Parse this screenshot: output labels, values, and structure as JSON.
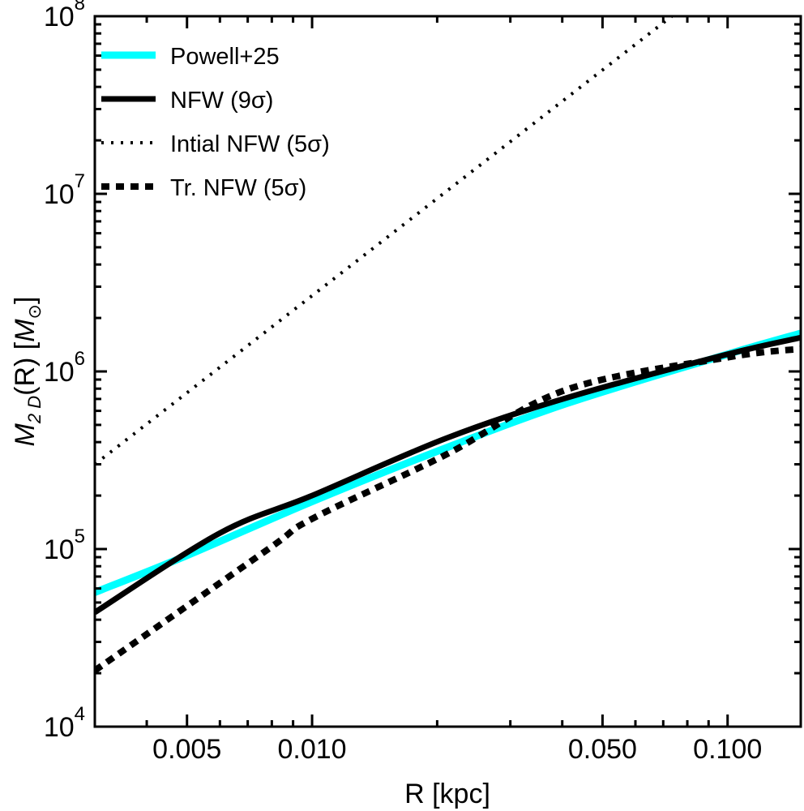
{
  "chart_data": {
    "type": "line",
    "xlabel": "R [kpc]",
    "ylabel": {
      "main": "M",
      "sub": "2 D",
      "mid": "(R) [",
      "unit": "M",
      "unit_sub": "⊙",
      "end": "]"
    },
    "xscale": "log",
    "yscale": "log",
    "xlim": [
      0.003,
      0.15
    ],
    "ylim": [
      10000,
      100000000
    ],
    "grid": false,
    "legend_position": "top-left",
    "x_ticks": [
      {
        "value": 0.005,
        "label": "0.005"
      },
      {
        "value": 0.01,
        "label": "0.010"
      },
      {
        "value": 0.05,
        "label": "0.050"
      },
      {
        "value": 0.1,
        "label": "0.100"
      }
    ],
    "y_ticks": [
      {
        "value": 10000,
        "base": "10",
        "exp": "4"
      },
      {
        "value": 100000,
        "base": "10",
        "exp": "5"
      },
      {
        "value": 1000000,
        "base": "10",
        "exp": "6"
      },
      {
        "value": 10000000,
        "base": "10",
        "exp": "7"
      },
      {
        "value": 100000000,
        "base": "10",
        "exp": "8"
      }
    ],
    "series": [
      {
        "name": "Powell+25",
        "color": "#00FFFF",
        "style": "solid-thick",
        "x": [
          0.003,
          0.005,
          0.01,
          0.02,
          0.041,
          0.1,
          0.15
        ],
        "y": [
          57000,
          92000,
          185000,
          355000,
          660000,
          1250000,
          1640000
        ]
      },
      {
        "name": "NFW (9σ)",
        "color": "#000000",
        "style": "solid",
        "x": [
          0.003,
          0.006,
          0.01,
          0.021,
          0.041,
          0.1,
          0.15
        ],
        "y": [
          44000,
          123000,
          200000,
          420000,
          710000,
          1250000,
          1550000
        ]
      },
      {
        "name": "Intial NFW (5σ)",
        "color": "#000000",
        "style": "dotted",
        "x": [
          0.003,
          0.01,
          0.05,
          0.0734
        ],
        "y": [
          300000,
          2670000,
          49800000,
          100000000
        ]
      },
      {
        "name": "Tr. NFW (5σ)",
        "color": "#000000",
        "style": "dashed",
        "x": [
          0.003,
          0.0078,
          0.01,
          0.021,
          0.041,
          0.1,
          0.15
        ],
        "y": [
          20700,
          99000,
          148000,
          340000,
          790000,
          1200000,
          1340000
        ]
      }
    ]
  }
}
